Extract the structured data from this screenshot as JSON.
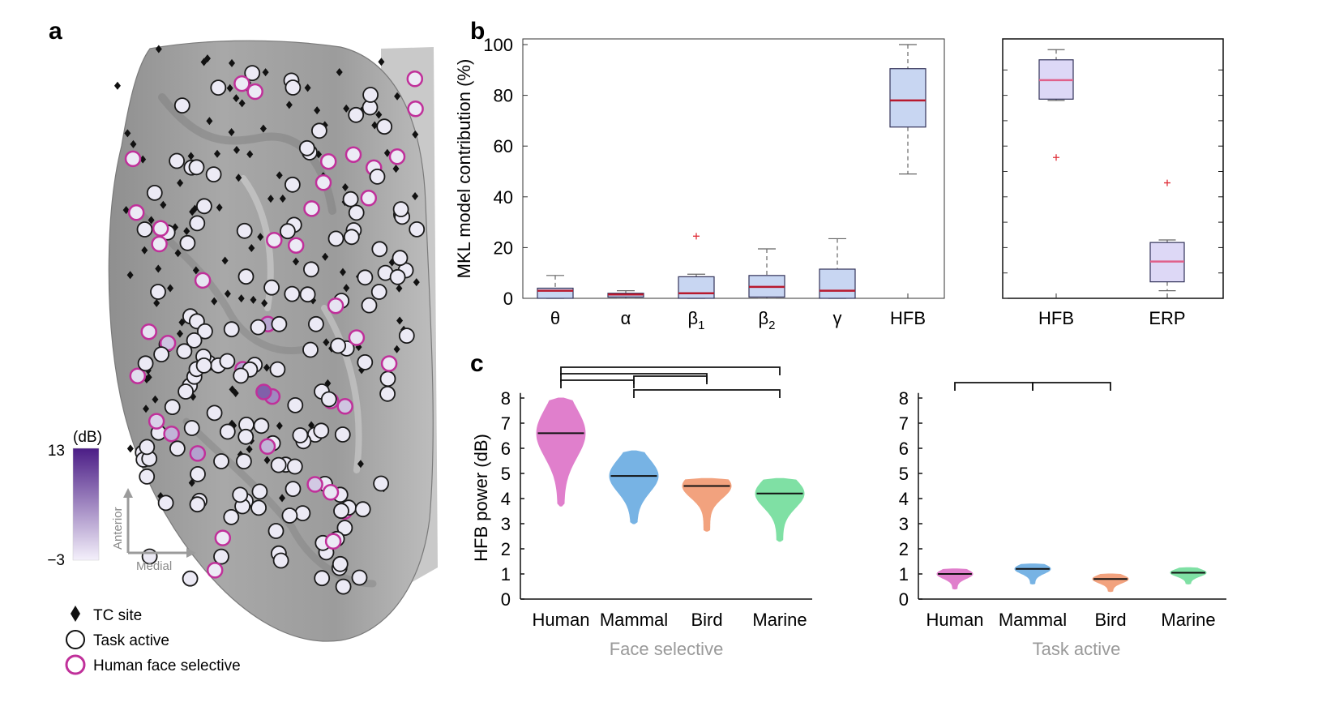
{
  "panel_letters": {
    "a": "a",
    "b": "b",
    "c": "c"
  },
  "colorbar": {
    "unit": "(dB)",
    "max": "13",
    "min": "−3",
    "dark": "#4b1d86",
    "light": "#f4f0fb"
  },
  "orientation": {
    "anterior": "Anterior",
    "medial": "Medial"
  },
  "legend": {
    "tc_site": "TC site",
    "task_active": "Task active",
    "face_selective": "Human face selective"
  },
  "colors": {
    "face_selective": "#c0309a",
    "box_fill": "#c8d6f2",
    "box_fill_light": "#ddd8f6",
    "median": "#b8192e",
    "median_light": "#e0608a",
    "outlier": "#e0303a"
  },
  "chart_data": [
    {
      "id": "b_left",
      "type": "box",
      "ylabel": "MKL model contribution (%)",
      "ylim": [
        0,
        100
      ],
      "yticks": [
        0,
        20,
        40,
        60,
        80,
        100
      ],
      "categories": [
        {
          "label": "θ",
          "sub": ""
        },
        {
          "label": "α",
          "sub": ""
        },
        {
          "label": "β",
          "sub": "1"
        },
        {
          "label": "β",
          "sub": "2"
        },
        {
          "label": "γ",
          "sub": ""
        },
        {
          "label": "HFB",
          "sub": ""
        }
      ],
      "boxes": [
        {
          "min": 0,
          "q1": 0,
          "median": 3,
          "q3": 4,
          "max": 9,
          "outliers": []
        },
        {
          "min": 0,
          "q1": 0.5,
          "median": 1.5,
          "q3": 2,
          "max": 3,
          "outliers": []
        },
        {
          "min": 0,
          "q1": 0,
          "median": 2,
          "q3": 8.5,
          "max": 9.5,
          "outliers": [
            24.5
          ]
        },
        {
          "min": 0,
          "q1": 0.5,
          "median": 4.5,
          "q3": 9,
          "max": 19.5,
          "outliers": []
        },
        {
          "min": 0,
          "q1": 0,
          "median": 3,
          "q3": 11.5,
          "max": 23.5,
          "outliers": []
        },
        {
          "min": 49,
          "q1": 67.5,
          "median": 78,
          "q3": 90.5,
          "max": 100,
          "outliers": []
        }
      ]
    },
    {
      "id": "b_right",
      "type": "box",
      "ylim": [
        0,
        100
      ],
      "categories": [
        {
          "label": "HFB",
          "sub": ""
        },
        {
          "label": "ERP",
          "sub": ""
        }
      ],
      "boxes": [
        {
          "min": 78,
          "q1": 78.5,
          "median": 86,
          "q3": 94,
          "max": 98,
          "outliers": [
            55.5
          ]
        },
        {
          "min": 3,
          "q1": 6.5,
          "median": 14.5,
          "q3": 22,
          "max": 23,
          "outliers": [
            45.5
          ]
        }
      ]
    },
    {
      "id": "c_left",
      "type": "violin",
      "ylabel": "HFB power (dB)",
      "xlabel": "Face selective",
      "ylim": [
        0,
        8.5
      ],
      "yticks": [
        0,
        1,
        2,
        3,
        4,
        5,
        6,
        7,
        8
      ],
      "categories": [
        "Human",
        "Mammal",
        "Bird",
        "Marine"
      ],
      "series": [
        {
          "name": "Human",
          "color": "#e07fcc",
          "median": 6.6,
          "min": 3.7,
          "max": 8.0
        },
        {
          "name": "Mammal",
          "color": "#77b3e4",
          "median": 4.9,
          "min": 3.0,
          "max": 5.9
        },
        {
          "name": "Bird",
          "color": "#f2a27e",
          "median": 4.5,
          "min": 2.7,
          "max": 4.8
        },
        {
          "name": "Marine",
          "color": "#7fe0a4",
          "median": 4.2,
          "min": 2.3,
          "max": 4.8
        }
      ],
      "significance": [
        {
          "from": "Human",
          "to": "Marine"
        },
        {
          "from": "Human",
          "to": "Bird"
        },
        {
          "from": "Human",
          "to": "Mammal"
        },
        {
          "from": "Mammal",
          "to": "Bird"
        },
        {
          "from": "Mammal",
          "to": "Marine"
        }
      ]
    },
    {
      "id": "c_right",
      "type": "violin",
      "xlabel": "Task active",
      "ylim": [
        0,
        8.5
      ],
      "yticks": [
        0,
        1,
        2,
        3,
        4,
        5,
        6,
        7,
        8
      ],
      "categories": [
        "Human",
        "Mammal",
        "Bird",
        "Marine"
      ],
      "series": [
        {
          "name": "Human",
          "color": "#e07fcc",
          "median": 1.0,
          "min": 0.4,
          "max": 1.2
        },
        {
          "name": "Mammal",
          "color": "#77b3e4",
          "median": 1.2,
          "min": 0.6,
          "max": 1.4
        },
        {
          "name": "Bird",
          "color": "#f2a27e",
          "median": 0.8,
          "min": 0.3,
          "max": 1.0
        },
        {
          "name": "Marine",
          "color": "#7fe0a4",
          "median": 1.05,
          "min": 0.6,
          "max": 1.25
        }
      ],
      "significance": [
        {
          "from": "Human",
          "to": "Mammal"
        },
        {
          "from": "Mammal",
          "to": "Bird"
        }
      ]
    }
  ]
}
